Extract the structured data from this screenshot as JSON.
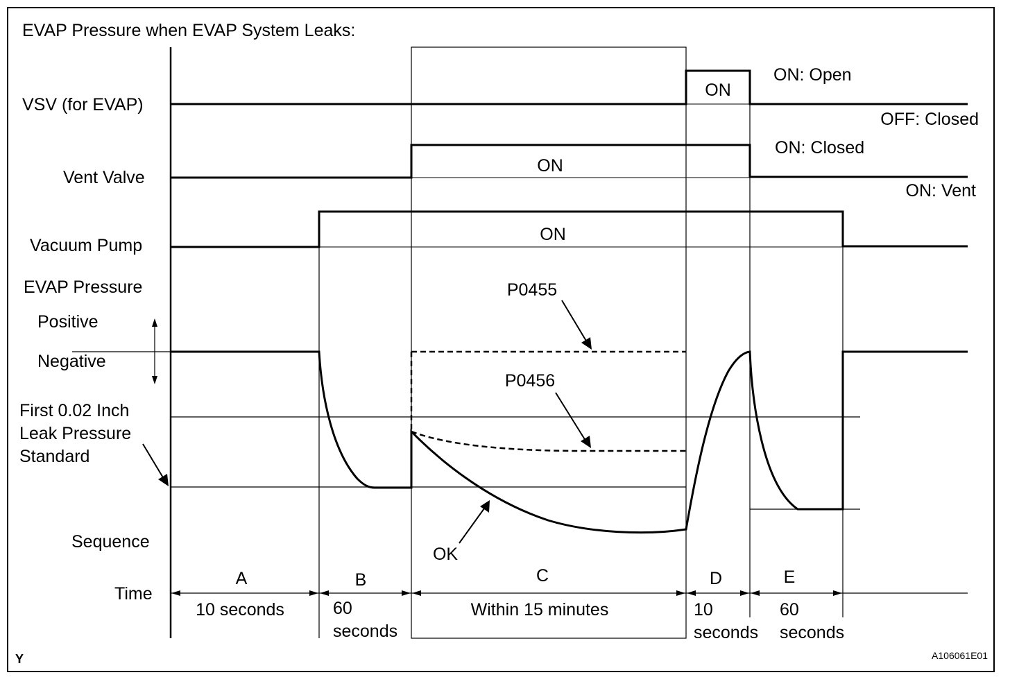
{
  "title": "EVAP Pressure when EVAP System Leaks:",
  "signals": {
    "vsv": {
      "label": "VSV (for EVAP)",
      "state_on": "ON",
      "on_meaning": "ON: Open",
      "off_meaning": "OFF: Closed"
    },
    "vent": {
      "label": "Vent Valve",
      "state_on": "ON",
      "on_meaning": "ON: Closed",
      "off_meaning": "ON: Vent"
    },
    "pump": {
      "label": "Vacuum Pump",
      "state_on": "ON"
    }
  },
  "pressure": {
    "label": "EVAP Pressure",
    "positive": "Positive",
    "negative": "Negative",
    "standard_label": [
      "First 0.02 Inch",
      "Leak Pressure",
      "Standard"
    ],
    "curves": [
      "P0455",
      "P0456",
      "OK"
    ]
  },
  "sequence_label": "Sequence",
  "time_label": "Time",
  "phases": [
    {
      "letter": "A",
      "duration": [
        "10 seconds"
      ]
    },
    {
      "letter": "B",
      "duration": [
        "60",
        "seconds"
      ]
    },
    {
      "letter": "C",
      "duration": [
        "Within 15 minutes"
      ]
    },
    {
      "letter": "D",
      "duration": [
        "10",
        "seconds"
      ]
    },
    {
      "letter": "E",
      "duration": [
        "60",
        "seconds"
      ]
    }
  ],
  "corner_mark": "Y",
  "figure_id": "A106061E01"
}
